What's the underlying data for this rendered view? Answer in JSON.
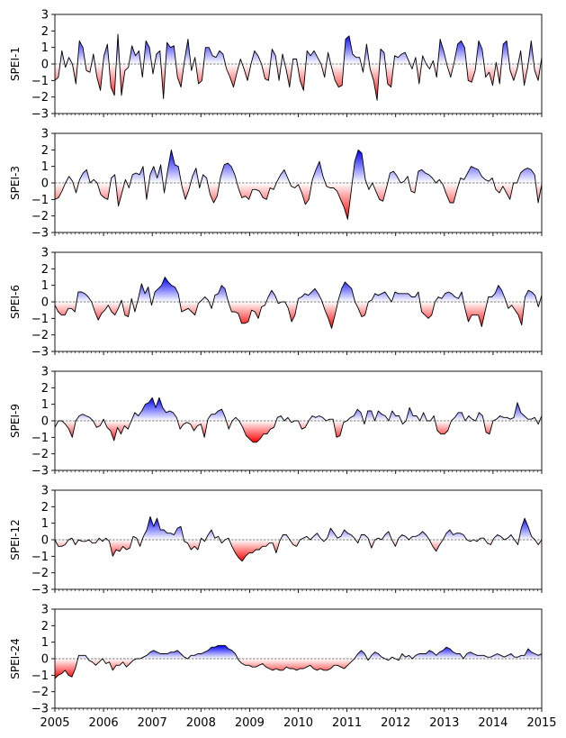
{
  "chart_data": {
    "type": "area",
    "x_range": [
      "2005",
      "2015"
    ],
    "x_tick_labels": [
      "2005",
      "2006",
      "2007",
      "2008",
      "2009",
      "2010",
      "2011",
      "2012",
      "2013",
      "2014",
      "2015"
    ],
    "ylim": [
      -3,
      3
    ],
    "y_tick_labels": [
      "−3",
      "−2",
      "−1",
      "0",
      "1",
      "2",
      "3"
    ],
    "grid": false,
    "baseline": 0,
    "positive_color": "#0000ff",
    "negative_color": "#ff0000",
    "line_color": "#000000",
    "panels": [
      {
        "ylabel": "SPEI-1",
        "values": [
          -1.0,
          -0.8,
          0.8,
          -0.2,
          0.4,
          0.0,
          -1.2,
          1.4,
          1.0,
          -0.4,
          -0.5,
          0.6,
          -0.8,
          -1.6,
          0.5,
          1.2,
          -1.4,
          -1.9,
          1.8,
          -1.9,
          -0.4,
          -0.2,
          1.1,
          0.5,
          0.8,
          -0.8,
          1.4,
          1.0,
          -0.6,
          0.6,
          0.8,
          -2.1,
          1.3,
          1.0,
          1.1,
          -0.8,
          -1.4,
          0.2,
          1.5,
          -0.4,
          0.4,
          -1.2,
          -1.0,
          1.0,
          1.0,
          0.5,
          0.4,
          0.8,
          0.6,
          -0.3,
          -0.8,
          -1.4,
          -0.5,
          0.3,
          -0.3,
          -1.0,
          0.0,
          0.8,
          0.5,
          0.0,
          -0.9,
          -1.0,
          0.9,
          0.5,
          -1.0,
          0.6,
          -0.3,
          -1.4,
          0.3,
          0.3,
          -1.0,
          -1.6,
          0.8,
          0.5,
          0.8,
          0.4,
          0.0,
          -0.8,
          0.7,
          -0.2,
          -1.0,
          -1.4,
          -1.3,
          1.5,
          1.7,
          0.6,
          0.4,
          0.4,
          -0.5,
          1.2,
          -0.3,
          -1.0,
          -2.2,
          0.9,
          0.7,
          -1.2,
          -1.4,
          0.5,
          0.4,
          0.6,
          0.7,
          0.2,
          -0.3,
          0.4,
          -1.2,
          0.5,
          0.0,
          -0.3,
          0.2,
          -0.8,
          1.5,
          0.8,
          -0.1,
          -0.8,
          0.1,
          1.2,
          1.4,
          1.0,
          -1.0,
          -1.1,
          -0.4,
          1.4,
          0.9,
          -0.8,
          -0.5,
          -1.3,
          0.1,
          -1.2,
          1.2,
          1.4,
          -0.4,
          -1.0,
          -0.3,
          0.8,
          -1.3,
          -0.2,
          1.4,
          -0.4,
          -1.0,
          0.4
        ]
      },
      {
        "ylabel": "SPEI-3",
        "values": [
          -1.0,
          -0.9,
          -0.5,
          0.0,
          0.4,
          0.1,
          -0.6,
          0.2,
          0.6,
          0.8,
          0.0,
          0.2,
          0.0,
          -0.7,
          -0.9,
          -1.0,
          0.3,
          0.5,
          -1.4,
          -0.6,
          0.2,
          -0.3,
          0.5,
          0.6,
          0.5,
          1.0,
          -1.0,
          0.5,
          1.0,
          0.3,
          1.1,
          -0.6,
          0.8,
          2.0,
          1.1,
          1.0,
          -0.2,
          -1.0,
          -0.4,
          0.4,
          0.9,
          -0.3,
          0.5,
          0.3,
          -0.7,
          -1.2,
          -0.8,
          0.4,
          1.1,
          1.2,
          1.0,
          0.5,
          -0.3,
          -0.9,
          -0.8,
          -1.0,
          -0.4,
          -0.4,
          -0.5,
          -0.9,
          -1.0,
          -0.3,
          -0.4,
          0.1,
          0.5,
          0.8,
          0.3,
          -0.2,
          -0.3,
          -0.1,
          -0.6,
          -1.3,
          -1.0,
          0.2,
          0.8,
          1.3,
          0.4,
          -0.2,
          -0.3,
          -0.3,
          -0.5,
          -1.0,
          -1.5,
          -2.2,
          -0.5,
          1.3,
          2.0,
          1.8,
          0.2,
          -0.4,
          0.0,
          -0.5,
          -1.0,
          -1.1,
          -0.3,
          0.6,
          0.7,
          0.4,
          0.0,
          0.1,
          0.4,
          -0.5,
          -0.6,
          0.7,
          0.8,
          0.6,
          0.5,
          0.3,
          0.0,
          0.2,
          -0.1,
          -0.7,
          -1.2,
          -1.2,
          -0.4,
          0.3,
          0.2,
          0.6,
          1.0,
          0.9,
          0.8,
          0.4,
          0.2,
          0.1,
          0.3,
          -0.4,
          -0.6,
          -0.2,
          -0.6,
          -1.0,
          0.0,
          0.0,
          0.6,
          0.8,
          0.9,
          0.8,
          0.5,
          -1.2,
          -0.1
        ]
      },
      {
        "ylabel": "SPEI-6",
        "values": [
          -0.2,
          -0.6,
          -0.8,
          -0.8,
          -0.4,
          -0.4,
          -0.6,
          0.6,
          0.6,
          0.5,
          0.3,
          0.0,
          -0.6,
          -1.1,
          -0.7,
          -0.5,
          -0.2,
          -0.6,
          -0.8,
          -0.4,
          0.1,
          -0.8,
          -0.9,
          0.2,
          -0.6,
          0.2,
          1.1,
          0.5,
          0.9,
          -0.2,
          0.6,
          0.8,
          1.0,
          1.5,
          1.2,
          1.0,
          0.9,
          0.5,
          -0.6,
          -0.5,
          -0.4,
          -0.6,
          -0.8,
          -0.1,
          0.1,
          0.3,
          0.1,
          -0.4,
          0.4,
          0.5,
          1.0,
          0.8,
          0.0,
          -0.6,
          -0.6,
          -0.7,
          -1.3,
          -1.3,
          -1.2,
          -0.5,
          -0.6,
          -1.0,
          -0.3,
          -0.2,
          0.3,
          0.7,
          0.4,
          -0.1,
          0.0,
          0.0,
          -0.4,
          -1.2,
          -0.8,
          0.2,
          0.3,
          0.5,
          0.4,
          0.6,
          0.8,
          0.5,
          0.1,
          -0.5,
          -1.0,
          -1.6,
          -0.8,
          0.1,
          0.8,
          1.2,
          1.0,
          0.8,
          0.0,
          -0.4,
          -0.9,
          -0.8,
          0.0,
          0.1,
          0.5,
          0.4,
          0.5,
          0.6,
          0.3,
          0.0,
          0.6,
          0.5,
          0.5,
          0.5,
          0.5,
          0.3,
          0.3,
          0.6,
          -0.6,
          -0.8,
          -1.0,
          -0.8,
          0.0,
          0.3,
          0.2,
          0.5,
          0.6,
          0.5,
          0.3,
          0.2,
          0.6,
          -0.4,
          -1.2,
          -0.8,
          -0.8,
          -0.8,
          -1.5,
          -0.6,
          0.3,
          0.3,
          0.5,
          1.0,
          0.7,
          0.2,
          -0.4,
          -0.2,
          -0.5,
          -0.8,
          -1.4,
          0.3,
          0.7,
          0.6,
          0.4,
          -0.3,
          0.4
        ]
      },
      {
        "ylabel": "SPEI-9",
        "values": [
          -0.4,
          0.0,
          0.0,
          -0.2,
          -0.5,
          -1.0,
          0.0,
          0.3,
          0.4,
          0.3,
          0.2,
          0.0,
          -0.4,
          -0.3,
          0.1,
          -0.4,
          -0.6,
          -1.2,
          -0.4,
          -0.8,
          -0.3,
          -0.5,
          0.0,
          0.5,
          0.3,
          0.6,
          1.0,
          1.1,
          1.4,
          0.8,
          1.4,
          0.8,
          0.5,
          0.6,
          0.5,
          0.2,
          -0.5,
          -0.2,
          -0.1,
          -0.2,
          -0.6,
          -0.3,
          -0.2,
          -1.0,
          0.1,
          0.4,
          0.4,
          0.6,
          0.7,
          0.2,
          -0.5,
          0.0,
          0.2,
          0.0,
          -0.4,
          -0.9,
          -1.1,
          -1.3,
          -1.3,
          -1.1,
          -0.8,
          -0.8,
          -0.5,
          -0.4,
          0.2,
          0.3,
          0.0,
          0.2,
          -0.1,
          0.0,
          0.0,
          -0.5,
          -0.4,
          0.0,
          0.3,
          0.2,
          0.3,
          0.2,
          0.0,
          0.1,
          0.1,
          -1.0,
          -0.9,
          -0.1,
          0.0,
          0.2,
          0.3,
          0.7,
          0.5,
          -0.2,
          0.6,
          0.6,
          0.0,
          0.6,
          0.4,
          0.3,
          0.0,
          0.6,
          0.3,
          0.3,
          -0.2,
          0.0,
          0.8,
          0.3,
          0.3,
          0.0,
          0.5,
          0.0,
          0.0,
          0.3,
          -0.6,
          -0.8,
          -0.8,
          -0.6,
          0.0,
          0.2,
          0.5,
          0.5,
          0.0,
          0.3,
          0.1,
          0.0,
          0.5,
          0.3,
          -0.7,
          -0.8,
          0.0,
          0.1,
          0.3,
          0.2,
          0.2,
          0.1,
          0.2,
          1.1,
          0.5,
          0.3,
          0.1,
          0.1,
          0.2,
          -0.2,
          0.3
        ]
      },
      {
        "ylabel": "SPEI-12",
        "values": [
          0.0,
          -0.4,
          -0.4,
          -0.3,
          0.0,
          0.1,
          -0.3,
          0.0,
          -0.1,
          -0.1,
          0.0,
          -0.2,
          -0.2,
          0.1,
          -0.1,
          0.1,
          -0.1,
          -1.0,
          -0.6,
          -0.7,
          -0.4,
          -0.6,
          -0.5,
          0.2,
          0.1,
          -0.4,
          0.2,
          0.6,
          1.4,
          0.8,
          1.3,
          0.6,
          0.6,
          0.4,
          0.4,
          0.3,
          0.7,
          0.8,
          -0.1,
          -0.2,
          -0.6,
          -0.4,
          -0.6,
          0.1,
          -0.1,
          0.3,
          0.6,
          0.1,
          0.2,
          -0.2,
          0.0,
          0.1,
          -0.4,
          -0.8,
          -1.1,
          -1.3,
          -1.0,
          -0.8,
          -0.8,
          -0.6,
          -0.6,
          -0.4,
          -0.4,
          -0.2,
          -0.2,
          -0.8,
          -0.1,
          0.3,
          0.3,
          0.0,
          -0.3,
          -0.4,
          0.0,
          0.1,
          0.2,
          0.0,
          0.2,
          0.4,
          0.1,
          -0.1,
          0.1,
          0.7,
          0.4,
          0.1,
          0.2,
          0.6,
          0.4,
          0.3,
          0.1,
          -0.2,
          0.3,
          0.3,
          0.1,
          -0.5,
          0.0,
          0.1,
          0.0,
          0.3,
          0.5,
          0.0,
          -0.4,
          0.1,
          0.3,
          0.2,
          0.0,
          0.2,
          0.2,
          0.3,
          0.5,
          0.3,
          0.0,
          -0.4,
          -0.7,
          -0.3,
          0.0,
          0.4,
          0.6,
          0.3,
          0.4,
          0.4,
          0.3,
          0.0,
          -0.1,
          0.0,
          -0.1,
          0.1,
          0.1,
          -0.2,
          -0.3,
          0.1,
          0.3,
          0.2,
          0.0,
          0.1,
          0.3,
          0.0,
          -0.3,
          0.7,
          1.3,
          0.8,
          0.2,
          0.0,
          -0.3,
          0.0
        ]
      },
      {
        "ylabel": "SPEI-24",
        "values": [
          -1.2,
          -1.0,
          -0.9,
          -0.7,
          -1.0,
          -1.1,
          -0.6,
          0.2,
          0.2,
          0.2,
          -0.1,
          -0.2,
          -0.4,
          -0.2,
          0.0,
          -0.3,
          -0.2,
          -0.7,
          -0.4,
          -0.4,
          -0.2,
          -0.5,
          -0.3,
          -0.1,
          0.0,
          0.0,
          0.1,
          0.2,
          0.4,
          0.5,
          0.4,
          0.3,
          0.3,
          0.3,
          0.4,
          0.4,
          0.5,
          0.3,
          0.1,
          0.0,
          0.2,
          0.2,
          0.3,
          0.3,
          0.4,
          0.5,
          0.7,
          0.7,
          0.8,
          0.8,
          0.8,
          0.6,
          0.5,
          0.3,
          -0.1,
          -0.3,
          -0.4,
          -0.4,
          -0.5,
          -0.5,
          -0.4,
          -0.3,
          -0.5,
          -0.6,
          -0.7,
          -0.6,
          -0.7,
          -0.7,
          -0.5,
          -0.6,
          -0.6,
          -0.7,
          -0.6,
          -0.6,
          -0.5,
          -0.4,
          -0.6,
          -0.7,
          -0.6,
          -0.7,
          -0.7,
          -0.6,
          -0.4,
          -0.4,
          -0.5,
          -0.6,
          -0.4,
          -0.2,
          0.0,
          0.3,
          0.5,
          0.3,
          -0.1,
          0.2,
          0.4,
          0.3,
          0.1,
          0.0,
          -0.1,
          0.1,
          0.0,
          -0.1,
          0.3,
          0.1,
          0.2,
          0.0,
          0.2,
          0.3,
          0.3,
          0.3,
          0.5,
          0.4,
          0.2,
          0.4,
          0.5,
          0.7,
          0.6,
          0.4,
          0.3,
          0.3,
          0.0,
          0.3,
          0.4,
          0.3,
          0.2,
          0.2,
          0.2,
          0.1,
          0.1,
          0.2,
          0.3,
          0.2,
          0.1,
          0.2,
          0.3,
          0.1,
          0.1,
          0.2,
          0.2,
          0.6,
          0.4,
          0.3,
          0.2,
          0.3
        ]
      }
    ]
  }
}
